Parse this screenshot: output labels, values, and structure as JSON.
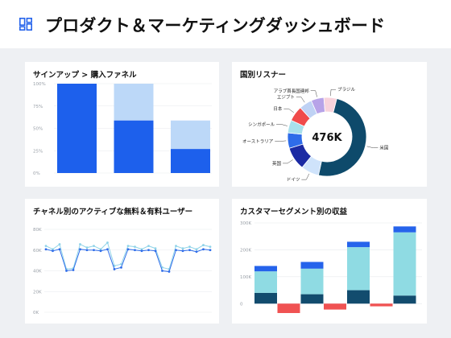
{
  "header": {
    "title": "プロダクト＆マーケティングダッシュボード",
    "icon": "dashboard-grid-icon",
    "accent": "#2563eb"
  },
  "cards": {
    "funnel": {
      "title": "サインアップ > 購入ファネル"
    },
    "countries": {
      "title": "国別リスナー"
    },
    "active_users": {
      "title": "チャネル別のアクティブな無料＆有料ユーザー"
    },
    "revenue": {
      "title": "カスタマーセグメント別の収益"
    }
  },
  "chart_data": [
    {
      "type": "bar",
      "title": "サインアップ > 購入ファネル",
      "ylim": [
        0,
        100
      ],
      "yticks": [
        "0%",
        "25%",
        "50%",
        "75%",
        "100%"
      ],
      "stages": [
        100,
        100,
        58.8
      ],
      "converted": [
        100,
        58.8,
        26.9
      ],
      "colors": {
        "converted": "#1d60ec",
        "dropped": "#bcd8f8"
      }
    },
    {
      "type": "pie",
      "title": "国別リスナー",
      "center_label": "476K",
      "slices": [
        {
          "name": "米国",
          "value": 47,
          "color": "#0e4a6b"
        },
        {
          "name": "ドイツ",
          "value": 7,
          "color": "#cfe3fb"
        },
        {
          "name": "英国",
          "value": 9,
          "color": "#1b2aa3"
        },
        {
          "name": "オーストラリア",
          "value": 6,
          "color": "#2e6ce9"
        },
        {
          "name": "シンガポール",
          "value": 5,
          "color": "#a8e0ec"
        },
        {
          "name": "日本",
          "value": 6,
          "color": "#f04b4b"
        },
        {
          "name": "エジプト",
          "value": 5,
          "color": "#bfd2f4"
        },
        {
          "name": "アラブ首長国連邦",
          "value": 5,
          "color": "#b7a3e8"
        },
        {
          "name": "ブラジル",
          "value": 5,
          "color": "#f8d3dc"
        }
      ],
      "gap_color": "#0e4a6b"
    },
    {
      "type": "line",
      "title": "チャネル別のアクティブな無料＆有料ユーザー",
      "ylim": [
        0,
        100
      ],
      "yticks": [
        "80K",
        "60K",
        "40K",
        "20K",
        "0K"
      ],
      "x": [
        1,
        2,
        3,
        4,
        5,
        6,
        7,
        8,
        9,
        10,
        11,
        12,
        13,
        14,
        15,
        16,
        17,
        18,
        19,
        20,
        21,
        22,
        23,
        24,
        25
      ],
      "series": [
        {
          "values": [
            80,
            76,
            82,
            52,
            53,
            82,
            78,
            80,
            76,
            84,
            56,
            58,
            80,
            79,
            76,
            80,
            77,
            54,
            52,
            80,
            77,
            79,
            76,
            81,
            79
          ],
          "color": "#8fd3e8"
        },
        {
          "values": [
            76,
            74,
            76,
            50,
            51,
            76,
            75,
            75,
            74,
            76,
            52,
            54,
            76,
            75,
            74,
            75,
            74,
            50,
            49,
            75,
            74,
            75,
            73,
            76,
            75
          ],
          "color": "#2e6ce9"
        }
      ]
    },
    {
      "type": "bar",
      "title": "カスタマーセグメント別の収益",
      "ylim": [
        -50,
        300
      ],
      "yticks": [
        "300K",
        "200K",
        "100K",
        "0"
      ],
      "categories": [
        "1",
        "2",
        "3",
        "4"
      ],
      "series": [
        {
          "values": [
            40,
            35,
            50,
            30
          ],
          "color": "#124c6e"
        },
        {
          "values": [
            80,
            95,
            160,
            235
          ],
          "color": "#8fdbe3"
        },
        {
          "values": [
            20,
            25,
            20,
            22
          ],
          "color": "#2563eb"
        },
        {
          "values": [
            -35,
            -22,
            -10,
            0
          ],
          "color": "#f05252"
        }
      ]
    }
  ]
}
